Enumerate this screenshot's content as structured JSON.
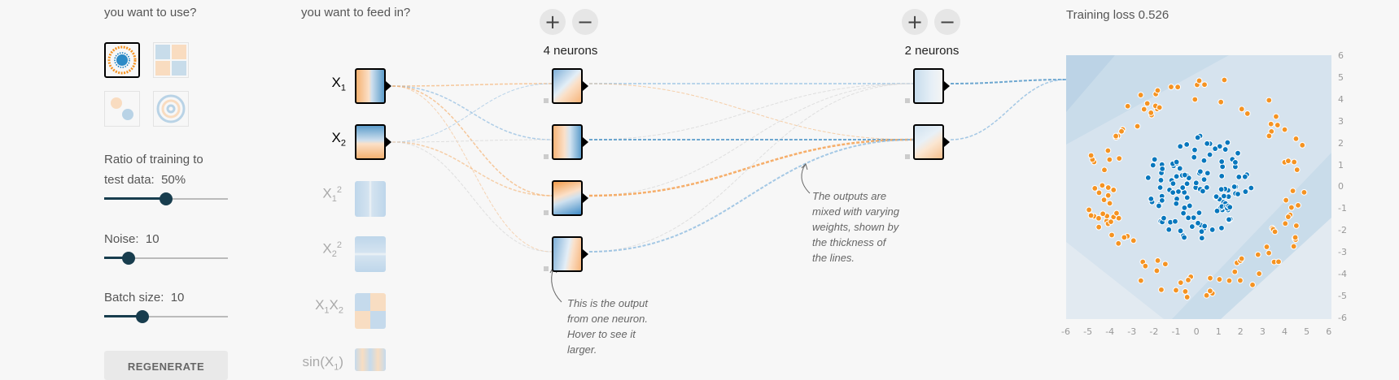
{
  "sidebar": {
    "dataset_heading": "you want to use?",
    "ratio_label": "Ratio of training to",
    "ratio_label_2": "test data:",
    "ratio_value": "50%",
    "ratio_fraction": 0.5,
    "noise_label": "Noise:",
    "noise_value": "10",
    "noise_fraction": 0.2,
    "batch_label": "Batch size:",
    "batch_value": "10",
    "batch_fraction": 0.31,
    "regenerate_label": "REGENERATE"
  },
  "features": {
    "heading": "you want to feed in?",
    "items": [
      {
        "base": "X",
        "sub": "1",
        "sup": "",
        "active": true
      },
      {
        "base": "X",
        "sub": "2",
        "sup": "",
        "active": true
      },
      {
        "base": "X",
        "sub": "1",
        "sup": "2",
        "active": false
      },
      {
        "base": "X",
        "sub": "2",
        "sup": "2",
        "active": false
      },
      {
        "base": "X",
        "sub": "1",
        "mid": "X",
        "sub2": "2",
        "active": false
      },
      {
        "base": "sin(X",
        "sub": "1",
        "tail": ")",
        "active": false
      }
    ]
  },
  "layers": [
    {
      "neurons_label": "4 neurons",
      "plus": "+",
      "minus": "−"
    },
    {
      "neurons_label": "2 neurons",
      "plus": "+",
      "minus": "−"
    }
  ],
  "annotations": {
    "neuron_note": [
      "This is the output",
      "from one neuron.",
      "Hover to see it",
      "larger."
    ],
    "weights_note": [
      "The outputs are",
      "mixed with varying",
      "weights, shown by",
      "the thickness of",
      "the lines."
    ]
  },
  "output": {
    "loss_label": "Training loss 0.526",
    "y_ticks": [
      "6",
      "5",
      "4",
      "3",
      "2",
      "1",
      "0",
      "-1",
      "-2",
      "-3",
      "-4",
      "-5",
      "-6"
    ],
    "x_ticks": [
      "-6",
      "-5",
      "-4",
      "-3",
      "-2",
      "-1",
      "0",
      "1",
      "2",
      "3",
      "4",
      "5",
      "6"
    ]
  },
  "colors": {
    "orange": "#f59322",
    "blue": "#0877bd",
    "slider": "#183d4e",
    "plot_bg": "#d6e3ee"
  }
}
